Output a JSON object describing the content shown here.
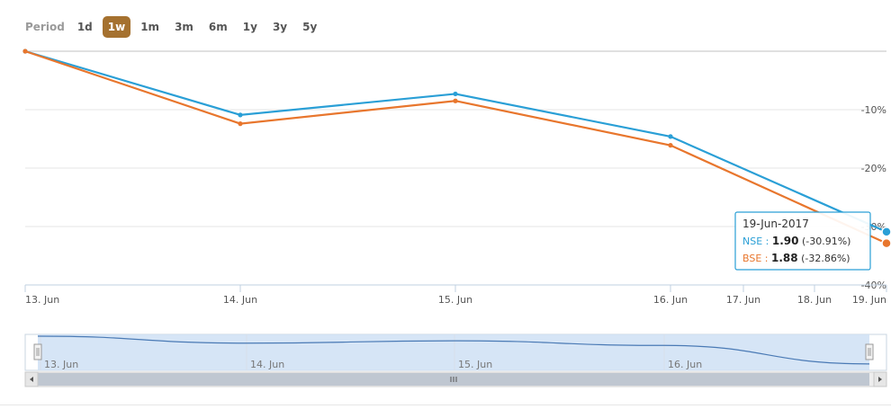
{
  "period": {
    "label": "Period",
    "buttons": [
      "1d",
      "1w",
      "1m",
      "3m",
      "6m",
      "1y",
      "3y",
      "5y"
    ],
    "active": "1w"
  },
  "colors": {
    "nse": "#2a9fd6",
    "bse": "#e8762d",
    "grid": "#e6e6e6",
    "navigator_fill": "#cfe0f5",
    "active_button": "#a5712f"
  },
  "chart_data": {
    "type": "line",
    "x": [
      "13. Jun",
      "14. Jun",
      "15. Jun",
      "16. Jun",
      "19. Jun"
    ],
    "x_axis_ticks": [
      "13. Jun",
      "14. Jun",
      "15. Jun",
      "16. Jun",
      "17. Jun",
      "18. Jun",
      "19. Jun"
    ],
    "y_axis_ticks": [
      "",
      "-10%",
      "-20%",
      "-30%",
      "-40%"
    ],
    "ylim": [
      -40,
      0
    ],
    "grid": true,
    "series": [
      {
        "name": "NSE",
        "values": [
          0,
          -10.9,
          -7.3,
          -14.6,
          -30.91
        ]
      },
      {
        "name": "BSE",
        "values": [
          0,
          -12.4,
          -8.5,
          -16.1,
          -32.86
        ]
      }
    ],
    "tooltip": {
      "date": "19-Jun-2017",
      "rows": [
        {
          "name": "NSE",
          "value": "1.90",
          "change": "(-30.91%)"
        },
        {
          "name": "BSE",
          "value": "1.88",
          "change": "(-32.86%)"
        }
      ]
    },
    "navigator": {
      "ticks": [
        "13. Jun",
        "14. Jun",
        "15. Jun",
        "16. Jun"
      ],
      "series": [
        0,
        -3,
        -2,
        -4,
        -12
      ]
    }
  }
}
